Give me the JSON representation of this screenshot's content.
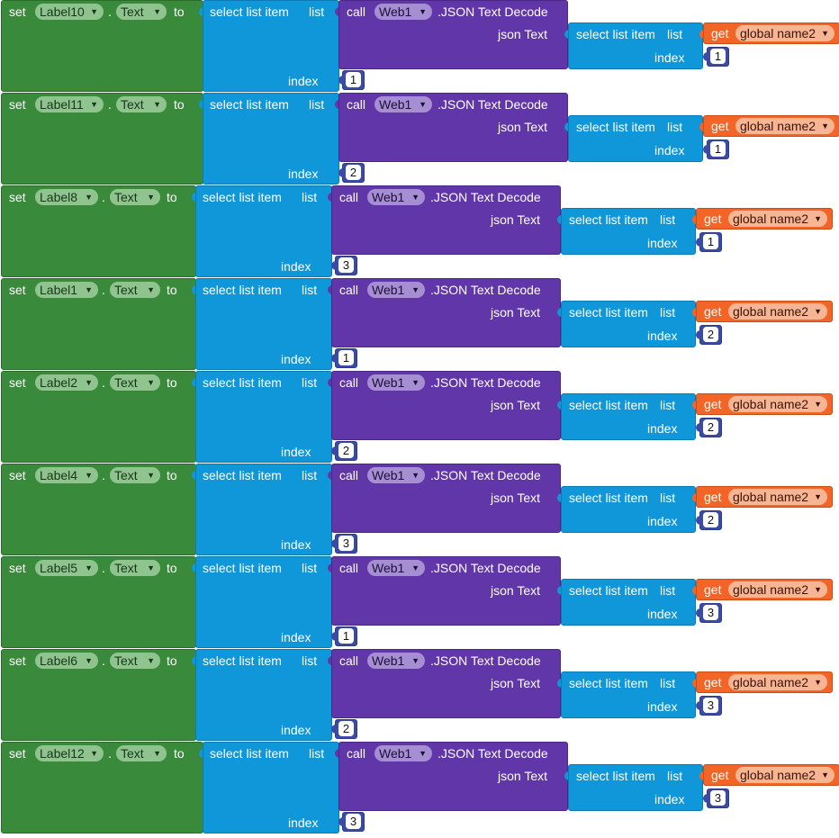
{
  "keywords": {
    "set": "set",
    "dot": ".",
    "to": "to",
    "select_list_item": "select list item",
    "list": "list",
    "index": "index",
    "call": "call",
    "method": ".JSON Text Decode",
    "json_text": "json Text",
    "get": "get"
  },
  "colors": {
    "setter": "#3a8a3c",
    "list_block": "#0f97d9",
    "component_call": "#6136a8",
    "variable_get": "#f26526",
    "number": "#3b4aa3"
  },
  "icons": {
    "dropdown": "▼"
  },
  "blocks": [
    {
      "label": "Label10",
      "property": "Text",
      "component": "Web1",
      "variable": "global name2",
      "outer_index": "1",
      "inner_index": "1"
    },
    {
      "label": "Label11",
      "property": "Text",
      "component": "Web1",
      "variable": "global name2",
      "outer_index": "2",
      "inner_index": "1"
    },
    {
      "label": "Label8",
      "property": "Text",
      "component": "Web1",
      "variable": "global name2",
      "outer_index": "3",
      "inner_index": "1"
    },
    {
      "label": "Label1",
      "property": "Text",
      "component": "Web1",
      "variable": "global name2",
      "outer_index": "1",
      "inner_index": "2"
    },
    {
      "label": "Label2",
      "property": "Text",
      "component": "Web1",
      "variable": "global name2",
      "outer_index": "2",
      "inner_index": "2"
    },
    {
      "label": "Label4",
      "property": "Text",
      "component": "Web1",
      "variable": "global name2",
      "outer_index": "3",
      "inner_index": "2"
    },
    {
      "label": "Label5",
      "property": "Text",
      "component": "Web1",
      "variable": "global name2",
      "outer_index": "1",
      "inner_index": "3"
    },
    {
      "label": "Label6",
      "property": "Text",
      "component": "Web1",
      "variable": "global name2",
      "outer_index": "2",
      "inner_index": "3"
    },
    {
      "label": "Label12",
      "property": "Text",
      "component": "Web1",
      "variable": "global name2",
      "outer_index": "3",
      "inner_index": "3"
    }
  ]
}
